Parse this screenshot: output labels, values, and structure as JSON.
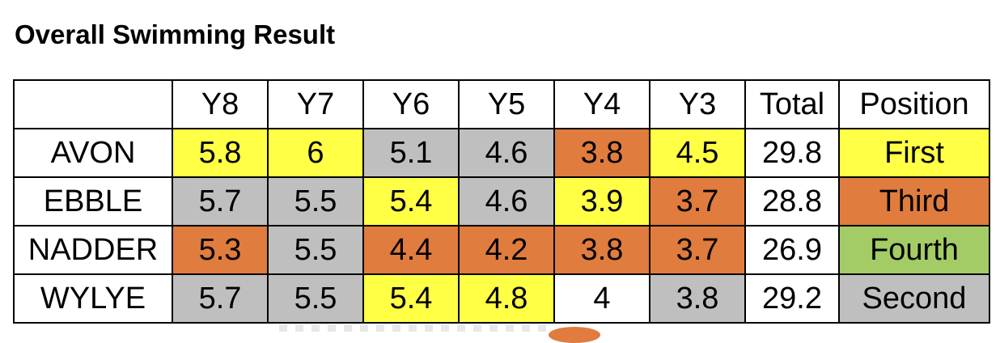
{
  "title": "Overall Swimming Result",
  "headers": [
    "",
    "Y8",
    "Y7",
    "Y6",
    "Y5",
    "Y4",
    "Y3",
    "Total",
    "Position"
  ],
  "rows": [
    {
      "team": "AVON",
      "scores": [
        "5.8",
        "6",
        "5.1",
        "4.6",
        "3.8",
        "4.5"
      ],
      "colors": [
        "yellow",
        "yellow",
        "grey",
        "grey",
        "orange",
        "yellow"
      ],
      "total": "29.8",
      "position": "First",
      "position_color": "yellow"
    },
    {
      "team": "EBBLE",
      "scores": [
        "5.7",
        "5.5",
        "5.4",
        "4.6",
        "3.9",
        "3.7"
      ],
      "colors": [
        "grey",
        "grey",
        "yellow",
        "grey",
        "yellow",
        "orange"
      ],
      "total": "28.8",
      "position": "Third",
      "position_color": "orange"
    },
    {
      "team": "NADDER",
      "scores": [
        "5.3",
        "5.5",
        "4.4",
        "4.2",
        "3.8",
        "3.7"
      ],
      "colors": [
        "orange",
        "grey",
        "orange",
        "orange",
        "orange",
        "orange"
      ],
      "total": "26.9",
      "position": "Fourth",
      "position_color": "green"
    },
    {
      "team": "WYLYE",
      "scores": [
        "5.7",
        "5.5",
        "5.4",
        "4.8",
        "4",
        "3.8"
      ],
      "colors": [
        "grey",
        "grey",
        "yellow",
        "yellow",
        "white",
        "grey"
      ],
      "total": "29.2",
      "position": "Second",
      "position_color": "grey"
    }
  ],
  "palette": {
    "yellow": "#ffff46",
    "grey": "#bfbfbf",
    "orange": "#e07c3e",
    "green": "#a4cc66",
    "white": "#ffffff"
  }
}
